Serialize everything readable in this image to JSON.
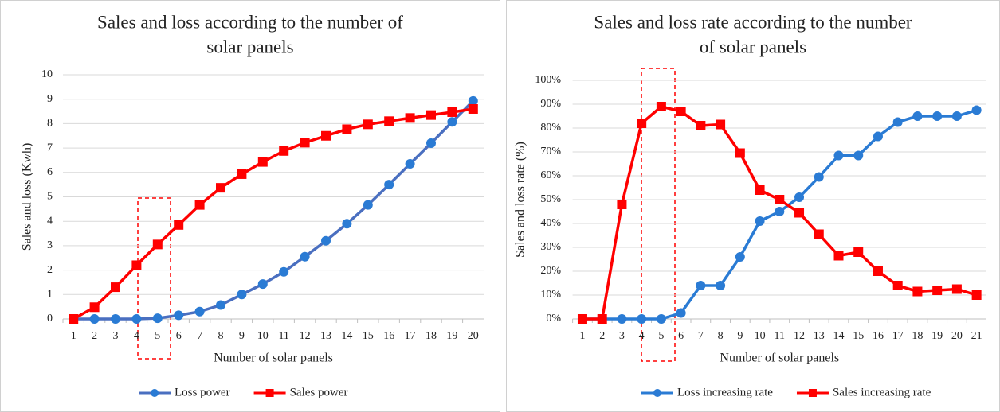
{
  "chart_data": [
    {
      "type": "line",
      "title": [
        "Sales and loss according to the number of",
        "solar panels"
      ],
      "x_label": "Number of solar panels",
      "y_label": "Sales and loss  (Kwh)",
      "categories": [
        "1",
        "2",
        "3",
        "4",
        "5",
        "6",
        "7",
        "8",
        "9",
        "10",
        "11",
        "12",
        "13",
        "14",
        "15",
        "16",
        "17",
        "18",
        "19",
        "20"
      ],
      "ylim": [
        0,
        10
      ],
      "yticks": [
        0,
        1,
        2,
        3,
        4,
        5,
        6,
        7,
        8,
        9,
        10
      ],
      "grid": true,
      "legend": "bottom",
      "series": [
        {
          "name": "Loss power",
          "color": "#4a6fc0",
          "marker_color": "#2a7bd4",
          "marker": "circle",
          "values": [
            0,
            0,
            0,
            0,
            0.03,
            0.15,
            0.3,
            0.57,
            1.0,
            1.43,
            1.93,
            2.55,
            3.2,
            3.9,
            4.67,
            5.5,
            6.35,
            7.2,
            8.07,
            8.93
          ]
        },
        {
          "name": "Sales power",
          "color": "#ff0000",
          "marker_color": "#ff0000",
          "marker": "square",
          "values": [
            0,
            0.48,
            1.3,
            2.2,
            3.05,
            3.85,
            4.67,
            5.37,
            5.93,
            6.43,
            6.88,
            7.22,
            7.5,
            7.77,
            7.97,
            8.1,
            8.23,
            8.35,
            8.47,
            8.6
          ]
        }
      ]
    },
    {
      "type": "line",
      "title": [
        "Sales and loss rate according to the number",
        "of solar panels"
      ],
      "x_label": "Number of solar panels",
      "y_label": "Sales and loss rate (%)",
      "categories": [
        "1",
        "2",
        "3",
        "4",
        "5",
        "6",
        "7",
        "8",
        "9",
        "10",
        "11",
        "12",
        "13",
        "14",
        "15",
        "16",
        "17",
        "18",
        "19",
        "20",
        "21"
      ],
      "ylim": [
        0,
        100
      ],
      "yticks": [
        {
          "value": 0,
          "label": "0%"
        },
        {
          "value": 10,
          "label": "10%"
        },
        {
          "value": 20,
          "label": "20%"
        },
        {
          "value": 30,
          "label": "30%"
        },
        {
          "value": 40,
          "label": "40%"
        },
        {
          "value": 50,
          "label": "50%"
        },
        {
          "value": 60,
          "label": "60%"
        },
        {
          "value": 70,
          "label": "70%"
        },
        {
          "value": 80,
          "label": "80%"
        },
        {
          "value": 90,
          "label": "90%"
        },
        {
          "value": 100,
          "label": "100%"
        }
      ],
      "grid": true,
      "legend": "bottom",
      "series": [
        {
          "name": "Loss increasing rate",
          "color": "#2a7bd4",
          "marker_color": "#2a7bd4",
          "marker": "circle",
          "values": [
            0,
            0,
            0,
            0,
            0,
            2.5,
            14,
            14,
            26,
            41,
            45,
            51,
            59.5,
            68.5,
            68.5,
            76.5,
            82.5,
            85,
            85,
            85,
            87.5
          ]
        },
        {
          "name": "Sales increasing rate",
          "color": "#ff0000",
          "marker_color": "#ff0000",
          "marker": "square",
          "values": [
            0,
            0,
            48,
            82,
            89,
            87,
            81,
            81.5,
            69.5,
            54,
            50,
            44.5,
            35.5,
            26.5,
            28,
            20,
            14,
            11.5,
            12,
            12.5,
            10
          ]
        }
      ]
    }
  ]
}
